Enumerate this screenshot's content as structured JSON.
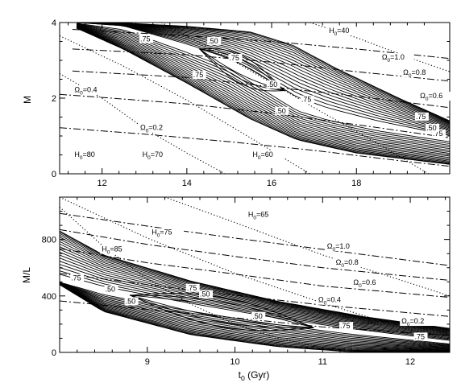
{
  "chart_data": [
    {
      "type": "contour",
      "xlabel": "",
      "ylabel": "M",
      "xlim": [
        11,
        20.2
      ],
      "ylim": [
        0,
        4
      ],
      "x_ticks": [
        12,
        14,
        16,
        18
      ],
      "y_ticks": [
        0,
        2,
        4
      ],
      "contour_region": {
        "ridge_x": [
          11.4,
          12.5,
          14,
          15,
          16.6,
          17.3,
          18.5,
          20.2
        ],
        "ridge_y": [
          4.0,
          3.9,
          3.35,
          2.95,
          1.8,
          1.55,
          1.25,
          0.95
        ],
        "upper_x": [
          12.3,
          14,
          15.5,
          16.5,
          17.5,
          19,
          20.2
        ],
        "upper_y": [
          4.0,
          3.9,
          3.75,
          3.4,
          2.8,
          2.0,
          1.4
        ],
        "lower_x": [
          11.2,
          12.5,
          14,
          15.5,
          16.6,
          18,
          20.2
        ],
        "lower_y": [
          3.95,
          3.3,
          2.4,
          1.45,
          0.9,
          0.55,
          0.25
        ],
        "core_x": [
          14.3,
          15.3,
          16.3
        ],
        "core_y": [
          3.3,
          2.75,
          2.2
        ]
      },
      "contour_labels": [
        {
          "text": ".50",
          "x": 14.5,
          "y": 3.45
        },
        {
          "text": ".75",
          "x": 12.9,
          "y": 3.5
        },
        {
          "text": ".75",
          "x": 15.0,
          "y": 3.0
        },
        {
          "text": ".75",
          "x": 14.15,
          "y": 2.55
        },
        {
          "text": ".75",
          "x": 16.7,
          "y": 1.9
        },
        {
          "text": ".75",
          "x": 19.4,
          "y": 1.45
        },
        {
          "text": ".75",
          "x": 19.8,
          "y": 1.0
        },
        {
          "text": ".50",
          "x": 15.9,
          "y": 2.3
        },
        {
          "text": ".50",
          "x": 16.1,
          "y": 1.6
        },
        {
          "text": ".50",
          "x": 19.65,
          "y": 1.15
        }
      ],
      "lines": [
        {
          "style": "dot-dash",
          "label": "Ω0=1.0",
          "x": [
            11.3,
            14,
            16,
            18,
            20.2
          ],
          "y": [
            3.82,
            3.65,
            3.5,
            3.3,
            3.05
          ],
          "label_x": 18.6,
          "label_y": 3.02
        },
        {
          "style": "dot-dash",
          "label": "Ω0=0.8",
          "x": [
            11.3,
            14,
            16,
            18,
            20.2
          ],
          "y": [
            3.3,
            3.15,
            2.95,
            2.7,
            2.45
          ],
          "label_x": 19.1,
          "label_y": 2.62
        },
        {
          "style": "dot-dash",
          "label": "Ω0=0.6",
          "x": [
            11.3,
            14,
            16,
            18,
            20.2
          ],
          "y": [
            2.72,
            2.55,
            2.3,
            2.05,
            1.75
          ],
          "label_x": 19.5,
          "label_y": 2.0
        },
        {
          "style": "dot-dash",
          "label": "Ω0=0.4",
          "x": [
            11.0,
            12,
            14,
            16,
            18,
            20.2
          ],
          "y": [
            2.1,
            2.02,
            1.85,
            1.6,
            1.3,
            0.95
          ],
          "label_x": 11.35,
          "label_y": 2.16
        },
        {
          "style": "dot-dash",
          "label": "Ω0=0.2",
          "x": [
            11.0,
            13,
            15,
            17,
            19,
            20.2
          ],
          "y": [
            1.22,
            1.05,
            0.85,
            0.62,
            0.35,
            0.2
          ],
          "label_x": 12.9,
          "label_y": 1.16
        },
        {
          "style": "dot",
          "label": "H0=80",
          "x": [
            11.0,
            12,
            13,
            14,
            14.9
          ],
          "y": [
            2.65,
            2.0,
            1.2,
            0.55,
            0.0
          ],
          "label_x": 11.35,
          "label_y": 0.45
        },
        {
          "style": "dot",
          "label": "H0=70",
          "x": [
            11.0,
            12.5,
            14,
            15.5,
            16.9
          ],
          "y": [
            3.65,
            2.85,
            1.95,
            0.95,
            0.0
          ],
          "label_x": 12.95,
          "label_y": 0.45
        },
        {
          "style": "dot",
          "label": "H0=60",
          "x": [
            13.4,
            15,
            17,
            18.5,
            19.7
          ],
          "y": [
            4.0,
            3.05,
            1.75,
            0.8,
            0.0
          ],
          "label_x": 15.55,
          "label_y": 0.45
        },
        {
          "style": "dot",
          "label": "H0=40",
          "x": [
            16.9,
            18,
            19.3,
            20.2
          ],
          "y": [
            4.0,
            3.6,
            3.05,
            2.7
          ],
          "label_x": 17.35,
          "label_y": 3.72
        }
      ]
    },
    {
      "type": "contour",
      "xlabel": "t0 (Gyr)",
      "ylabel": "M/L",
      "xlim": [
        8.0,
        12.45
      ],
      "ylim": [
        0,
        1100
      ],
      "x_ticks": [
        9,
        10,
        11,
        12
      ],
      "y_ticks": [
        0,
        400,
        800
      ],
      "contour_region": {
        "ridge_x": [
          8.0,
          8.5,
          9.3,
          10.3,
          11.2,
          12.45
        ],
        "ridge_y": [
          500,
          430,
          340,
          240,
          160,
          70
        ],
        "upper_x": [
          8.0,
          8.5,
          9.5,
          10.5,
          11.5,
          12.45
        ],
        "upper_y": [
          860,
          690,
          505,
          360,
          250,
          170
        ],
        "lower_x": [
          8.0,
          8.5,
          9.5,
          10.5,
          11.3,
          12.45
        ],
        "lower_y": [
          480,
          290,
          125,
          40,
          5,
          0
        ],
        "core_x": [
          8.8,
          9.8,
          10.9
        ],
        "core_y": [
          405,
          290,
          175
        ]
      },
      "contour_labels": [
        {
          "text": ".75",
          "x": 8.13,
          "y": 510
        },
        {
          "text": ".50",
          "x": 8.52,
          "y": 430
        },
        {
          "text": ".50",
          "x": 8.75,
          "y": 345
        },
        {
          "text": ".75",
          "x": 9.45,
          "y": 440
        },
        {
          "text": ".50",
          "x": 9.6,
          "y": 395
        },
        {
          "text": ".50",
          "x": 10.2,
          "y": 240
        },
        {
          "text": ".75",
          "x": 11.2,
          "y": 170
        },
        {
          "text": ".75",
          "x": 12.05,
          "y": 95
        }
      ],
      "lines": [
        {
          "style": "dot-dash",
          "label": "Ω0=1.0",
          "x": [
            8.0,
            9,
            10,
            11,
            12.45
          ],
          "y": [
            985,
            895,
            810,
            730,
            615
          ],
          "label_x": 11.05,
          "label_y": 735
        },
        {
          "style": "dot-dash",
          "label": "Ω0=0.8",
          "x": [
            8.0,
            9,
            10,
            11,
            12.45
          ],
          "y": [
            870,
            765,
            680,
            600,
            510
          ],
          "label_x": 11.15,
          "label_y": 620
        },
        {
          "style": "dot-dash",
          "label": "Ω0=0.6",
          "x": [
            8.0,
            9,
            10,
            11,
            12.45
          ],
          "y": [
            735,
            635,
            555,
            470,
            390
          ],
          "label_x": 11.35,
          "label_y": 480
        },
        {
          "style": "dot-dash",
          "label": "Ω0=0.4",
          "x": [
            8.0,
            9,
            10,
            11,
            12.45
          ],
          "y": [
            560,
            480,
            405,
            335,
            255
          ],
          "label_x": 10.95,
          "label_y": 355
        },
        {
          "style": "dot-dash",
          "label": "Ω0=0.2",
          "x": [
            8.0,
            9,
            10,
            11,
            12.45
          ],
          "y": [
            365,
            305,
            245,
            180,
            120
          ],
          "label_x": 11.9,
          "label_y": 205
        },
        {
          "style": "dot",
          "label": "H0=85",
          "x": [
            8.0,
            8.5,
            9.0,
            9.5,
            10.0,
            10.5,
            11.0,
            11.6
          ],
          "y": [
            1030,
            750,
            520,
            340,
            200,
            100,
            35,
            0
          ],
          "label_x": 8.48,
          "label_y": 715
        },
        {
          "style": "dot",
          "label": "H0=75",
          "x": [
            8.0,
            9,
            10,
            11,
            12,
            12.45
          ],
          "y": [
            1100,
            810,
            560,
            350,
            160,
            90
          ],
          "label_x": 9.05,
          "label_y": 835
        },
        {
          "style": "dot",
          "label": "H0=65",
          "x": [
            9.2,
            10,
            11,
            12,
            12.45
          ],
          "y": [
            1100,
            920,
            690,
            490,
            400
          ],
          "label_x": 10.15,
          "label_y": 960
        }
      ]
    }
  ]
}
